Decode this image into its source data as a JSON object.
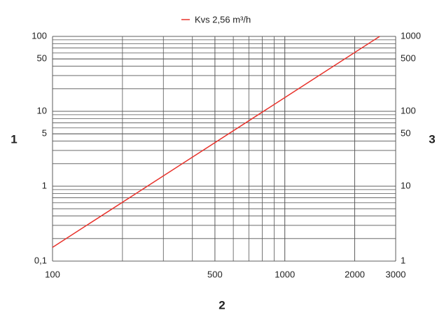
{
  "chart_data": {
    "type": "line",
    "xlabel": "2",
    "ylabel": "1",
    "y2label": "3",
    "log_x": true,
    "log_y": true,
    "grid": "log-minor",
    "legend": "top",
    "x": [
      100,
      2560
    ],
    "series": [
      {
        "name": "Kvs 2,56 m³/h",
        "color": "#e8322b",
        "values": [
          0.1526,
          100
        ]
      }
    ],
    "xlim": [
      100,
      3000
    ],
    "xticks": [
      100,
      500,
      1000,
      2000,
      3000
    ],
    "ylim": [
      0.1,
      100
    ],
    "yticks": [
      {
        "value": 0.1,
        "label": "0,1"
      },
      1,
      5,
      10,
      50,
      100
    ],
    "y2lim": [
      1,
      1000
    ],
    "y2ticks": [
      1,
      10,
      50,
      100,
      500,
      1000
    ]
  }
}
